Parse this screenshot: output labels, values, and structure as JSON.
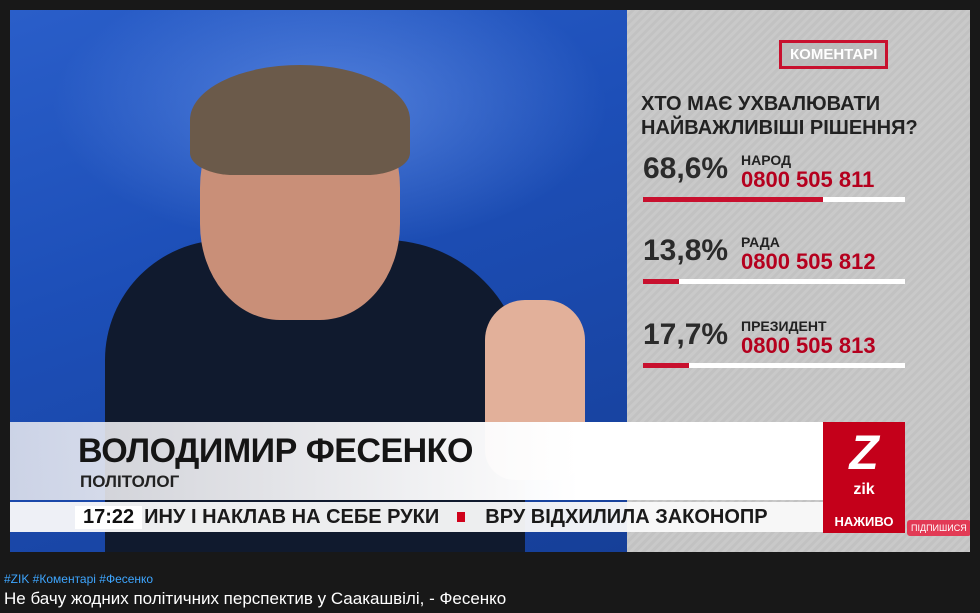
{
  "video": {
    "panel": {
      "badge": "КОМЕНТАРІ",
      "question_line1": "ХТО МАЄ УХВАЛЮВАТИ",
      "question_line2": "НАЙВАЖЛИВІШІ РІШЕННЯ?",
      "options": [
        {
          "percent": "68,6%",
          "label": "НАРОД",
          "phone": "0800 505 811",
          "fill": 68.6
        },
        {
          "percent": "13,8%",
          "label": "РАДА",
          "phone": "0800 505 812",
          "fill": 13.8
        },
        {
          "percent": "17,7%",
          "label": "ПРЕЗИДЕНТ",
          "phone": "0800 505 813",
          "fill": 17.7
        }
      ]
    },
    "lower_third": {
      "name": "ВОЛОДИМИР ФЕСЕНКО",
      "role": "ПОЛІТОЛОГ"
    },
    "ticker": {
      "time": "17:22",
      "item1": "ИНУ І НАКЛАВ НА СЕБЕ РУКИ",
      "item2": "ВРУ ВІДХИЛИЛА ЗАКОНОПР"
    },
    "logo": {
      "mark": "Z",
      "name": "zik",
      "live": "НАЖИВО"
    },
    "subscribe": "ПІДПИШИСЯ"
  },
  "hashtags": "#ZIK #Коментарі #Фесенко",
  "title": "Не бачу жодних політичних перспектив у Саакашвілі, - Фесенко",
  "colors": {
    "accent": "#c8102e",
    "hashtag": "#3ea6ff",
    "background": "#181818"
  }
}
